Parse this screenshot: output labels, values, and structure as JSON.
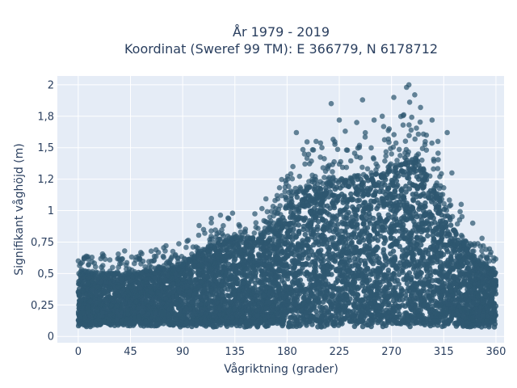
{
  "chart_data": {
    "type": "scatter",
    "title_line1": "År 1979 - 2019",
    "title_line2": "Koordinat (Sweref 99 TM): E 366779, N 6178712",
    "xlabel": "Vågriktning (grader)",
    "ylabel": "Signifikant våghöjd (m)",
    "xlim": [
      -18,
      367
    ],
    "ylim": [
      -0.05,
      2.07
    ],
    "x_ticks": [
      0,
      45,
      90,
      135,
      180,
      225,
      270,
      315,
      360
    ],
    "x_tick_labels": [
      "0",
      "45",
      "90",
      "135",
      "180",
      "225",
      "270",
      "315",
      "360"
    ],
    "y_ticks": [
      0,
      0.25,
      0.5,
      0.75,
      1,
      1.25,
      1.5,
      1.75,
      2
    ],
    "y_tick_labels": [
      "0",
      "0,25",
      "0,5",
      "0,75",
      "1",
      "1,2",
      "1,5",
      "1,8",
      "2"
    ],
    "grid": true,
    "marker_color": "#2e5770",
    "plot_background": "#e5ecf6",
    "upper_envelope": [
      [
        0,
        0.5
      ],
      [
        15,
        0.5
      ],
      [
        30,
        0.5
      ],
      [
        45,
        0.5
      ],
      [
        60,
        0.52
      ],
      [
        75,
        0.55
      ],
      [
        90,
        0.57
      ],
      [
        105,
        0.68
      ],
      [
        120,
        0.75
      ],
      [
        135,
        0.78
      ],
      [
        150,
        0.78
      ],
      [
        165,
        0.85
      ],
      [
        175,
        0.95
      ],
      [
        185,
        1.15
      ],
      [
        200,
        1.2
      ],
      [
        215,
        1.22
      ],
      [
        230,
        1.25
      ],
      [
        245,
        1.28
      ],
      [
        260,
        1.3
      ],
      [
        275,
        1.4
      ],
      [
        285,
        1.45
      ],
      [
        295,
        1.38
      ],
      [
        305,
        1.2
      ],
      [
        315,
        1.05
      ],
      [
        325,
        0.85
      ],
      [
        335,
        0.7
      ],
      [
        345,
        0.6
      ],
      [
        355,
        0.55
      ],
      [
        360,
        0.5
      ]
    ],
    "outliers": [
      [
        0,
        0.6
      ],
      [
        5,
        0.62
      ],
      [
        20,
        0.55
      ],
      [
        35,
        0.62
      ],
      [
        40,
        0.68
      ],
      [
        50,
        0.63
      ],
      [
        65,
        0.6
      ],
      [
        80,
        0.62
      ],
      [
        100,
        0.63
      ],
      [
        108,
        0.85
      ],
      [
        125,
        0.88
      ],
      [
        140,
        0.83
      ],
      [
        160,
        0.92
      ],
      [
        172,
        0.98
      ],
      [
        185,
        1.35
      ],
      [
        188,
        1.62
      ],
      [
        195,
        1.45
      ],
      [
        205,
        1.55
      ],
      [
        210,
        1.5
      ],
      [
        215,
        1.35
      ],
      [
        218,
        1.85
      ],
      [
        225,
        1.72
      ],
      [
        232,
        1.48
      ],
      [
        240,
        1.7
      ],
      [
        245,
        1.88
      ],
      [
        255,
        1.72
      ],
      [
        262,
        1.75
      ],
      [
        268,
        1.65
      ],
      [
        272,
        1.9
      ],
      [
        280,
        1.68
      ],
      [
        283,
        1.98
      ],
      [
        285,
        2.0
      ],
      [
        290,
        1.92
      ],
      [
        295,
        1.82
      ],
      [
        300,
        1.6
      ],
      [
        305,
        1.72
      ],
      [
        310,
        1.55
      ],
      [
        318,
        1.62
      ],
      [
        322,
        1.3
      ],
      [
        330,
        1.05
      ],
      [
        340,
        0.9
      ],
      [
        348,
        0.78
      ],
      [
        355,
        0.65
      ],
      [
        358,
        0.6
      ]
    ]
  }
}
